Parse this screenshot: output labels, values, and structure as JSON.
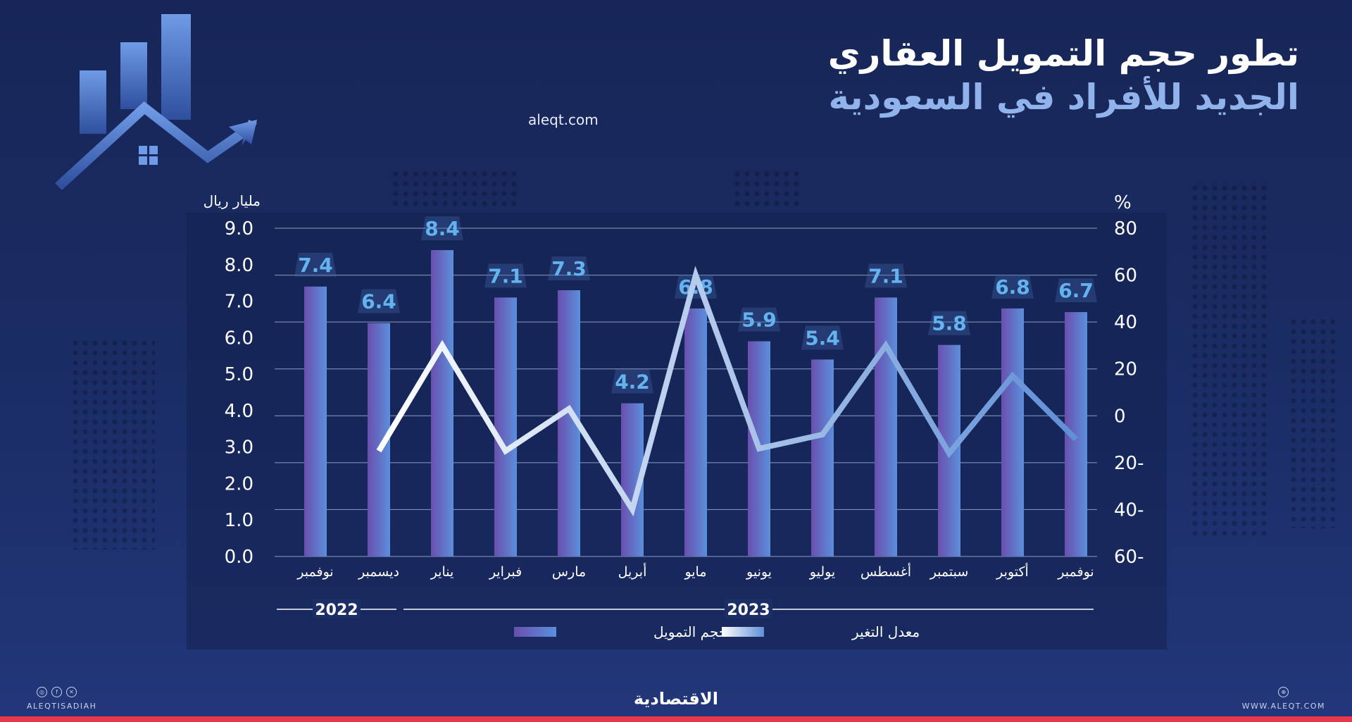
{
  "header": {
    "title_line1": "تطور حجم التمويل العقاري",
    "title_line2": "الجديد للأفراد في السعودية",
    "website": "aleqt.com"
  },
  "chart_data": {
    "type": "bar",
    "left_axis_label": "مليار ريال",
    "right_axis_label": "%",
    "ylim_left": [
      0,
      9
    ],
    "ylim_right": [
      -60,
      80
    ],
    "left_ticks": [
      "9.0",
      "8.0",
      "7.0",
      "6.0",
      "5.0",
      "4.0",
      "3.0",
      "2.0",
      "1.0",
      "0.0"
    ],
    "right_ticks": [
      "80",
      "60",
      "40",
      "20",
      "0",
      "20-",
      "40-",
      "60-"
    ],
    "categories": [
      "نوفمبر",
      "ديسمبر",
      "يناير",
      "فبراير",
      "مارس",
      "أبريل",
      "مايو",
      "يونيو",
      "يوليو",
      "أغسطس",
      "سبتمبر",
      "أكتوبر",
      "نوفمبر"
    ],
    "series": [
      {
        "name": "حجم التمويل",
        "type": "bar",
        "axis": "left",
        "values": [
          7.4,
          6.4,
          8.4,
          7.1,
          7.3,
          4.2,
          6.8,
          5.9,
          5.4,
          7.1,
          5.8,
          6.8,
          6.7
        ],
        "labels": [
          "7.4",
          "6.4",
          "8.4",
          "7.1",
          "7.3",
          "4.2",
          "6.8",
          "5.9",
          "5.4",
          "7.1",
          "5.8",
          "6.8",
          "6.7"
        ]
      },
      {
        "name": "معدل التغير",
        "type": "line",
        "axis": "right",
        "values": [
          null,
          -15,
          30,
          -15,
          3,
          -40,
          60,
          -14,
          -8,
          30,
          -16,
          17,
          -10
        ]
      }
    ],
    "year_groups": [
      {
        "label": "2022",
        "from": 0,
        "to": 1
      },
      {
        "label": "2023",
        "from": 2,
        "to": 12
      }
    ],
    "colors": {
      "bar_top": "#5b8fdb",
      "bar_bottom": "#6a4fae",
      "line_start": "#ffffff",
      "line_end": "#5f8fd6",
      "value_label": "#63b3ef",
      "grid": "#8c9bc4"
    }
  },
  "footer": {
    "handle": "ALEQTISADIAH",
    "url": "WWW.ALEQT.COM",
    "brand": "الاقتصادية",
    "social_icons": [
      "instagram-icon",
      "facebook-icon",
      "x-icon"
    ]
  }
}
